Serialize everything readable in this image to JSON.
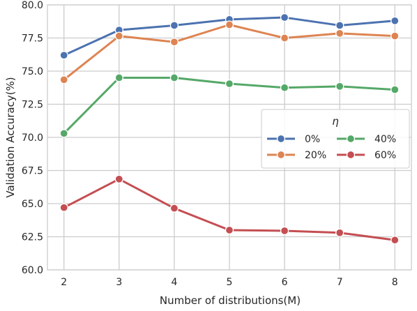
{
  "chart_data": {
    "type": "line",
    "title": "",
    "xlabel": "Number of distributions(M)",
    "ylabel": "Validation Accuracy(%)",
    "x": [
      2,
      3,
      4,
      5,
      6,
      7,
      8
    ],
    "xticks": [
      "2",
      "3",
      "4",
      "5",
      "6",
      "7",
      "8"
    ],
    "yticks": [
      60.0,
      62.5,
      65.0,
      67.5,
      70.0,
      72.5,
      75.0,
      77.5,
      80.0
    ],
    "ytick_labels": [
      "60.0",
      "62.5",
      "65.0",
      "67.5",
      "70.0",
      "72.5",
      "75.0",
      "77.5",
      "80.0"
    ],
    "xlim": [
      1.7,
      8.3
    ],
    "ylim": [
      60.0,
      80.0
    ],
    "grid": true,
    "legend": {
      "title": "η",
      "placement": "center-right",
      "columns": 2
    },
    "series": [
      {
        "name": "0%",
        "color": "#4c72b0",
        "values": [
          76.2,
          78.1,
          78.45,
          78.9,
          79.05,
          78.45,
          78.8
        ]
      },
      {
        "name": "20%",
        "color": "#dd8452",
        "values": [
          74.35,
          77.65,
          77.2,
          78.5,
          77.5,
          77.85,
          77.65
        ]
      },
      {
        "name": "40%",
        "color": "#55a868",
        "values": [
          70.3,
          74.5,
          74.5,
          74.05,
          73.75,
          73.85,
          73.6
        ]
      },
      {
        "name": "60%",
        "color": "#c44e52",
        "values": [
          64.7,
          66.85,
          64.65,
          63.0,
          62.95,
          62.8,
          62.25
        ]
      }
    ]
  }
}
